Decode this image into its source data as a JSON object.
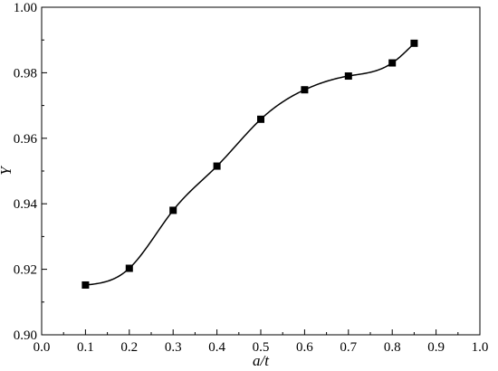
{
  "chart_data": {
    "type": "scatter",
    "title": "",
    "xlabel": "a/t",
    "ylabel": "Y",
    "xlim": [
      0.0,
      1.0
    ],
    "ylim": [
      0.9,
      1.0
    ],
    "grid": false,
    "legend": "none",
    "x_ticks": [
      "0.0",
      "0.1",
      "0.2",
      "0.3",
      "0.4",
      "0.5",
      "0.6",
      "0.7",
      "0.8",
      "0.9",
      "1.0"
    ],
    "y_ticks": [
      "0.90",
      "0.92",
      "0.94",
      "0.96",
      "0.98",
      "1.00"
    ],
    "series": [
      {
        "marker": "square",
        "color": "#000000",
        "fit_line": "smooth curve",
        "x": [
          0.1,
          0.2,
          0.3,
          0.4,
          0.5,
          0.6,
          0.7,
          0.8,
          0.85
        ],
        "y": [
          0.9152,
          0.9203,
          0.938,
          0.9515,
          0.9658,
          0.9748,
          0.979,
          0.983,
          0.989
        ]
      }
    ]
  }
}
